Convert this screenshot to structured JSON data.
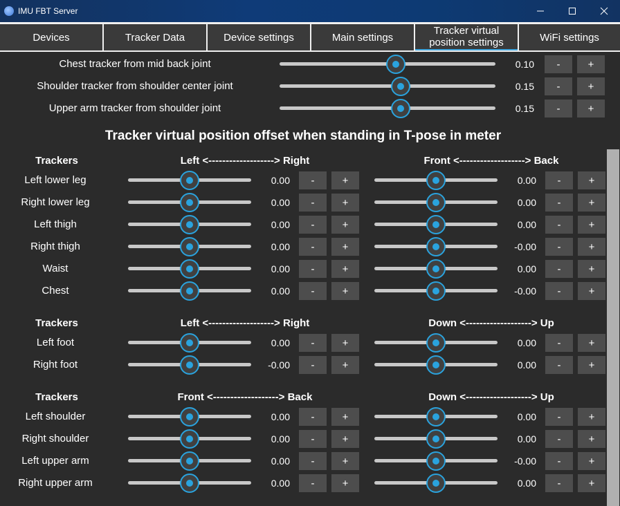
{
  "window": {
    "title": "IMU FBT Server"
  },
  "tabs": [
    "Devices",
    "Tracker Data",
    "Device settings",
    "Main settings",
    "Tracker virtual\nposition settings",
    "WiFi settings"
  ],
  "buttons": {
    "minus": "-",
    "plus": "+"
  },
  "top_rows": [
    {
      "label": "Chest tracker from mid back joint",
      "value": "0.10",
      "position": 0.54
    },
    {
      "label": "Shoulder tracker from shoulder center joint",
      "value": "0.15",
      "position": 0.56
    },
    {
      "label": "Upper arm tracker from shoulder joint",
      "value": "0.15",
      "position": 0.56
    }
  ],
  "section_title": "Tracker virtual position offset when standing in T-pose in meter",
  "groups": [
    {
      "col_header": "Trackers",
      "axis1": "Left <-------------------> Right",
      "axis2": "Front <-------------------> Back",
      "rows": [
        {
          "label": "Left lower leg",
          "v1": "0.00",
          "v2": "0.00"
        },
        {
          "label": "Right lower leg",
          "v1": "0.00",
          "v2": "0.00"
        },
        {
          "label": "Left thigh",
          "v1": "0.00",
          "v2": "0.00"
        },
        {
          "label": "Right thigh",
          "v1": "0.00",
          "v2": "-0.00"
        },
        {
          "label": "Waist",
          "v1": "0.00",
          "v2": "0.00"
        },
        {
          "label": "Chest",
          "v1": "0.00",
          "v2": "-0.00"
        }
      ]
    },
    {
      "col_header": "Trackers",
      "axis1": "Left <-------------------> Right",
      "axis2": "Down <-------------------> Up",
      "rows": [
        {
          "label": "Left foot",
          "v1": "0.00",
          "v2": "0.00"
        },
        {
          "label": "Right foot",
          "v1": "-0.00",
          "v2": "0.00"
        }
      ]
    },
    {
      "col_header": "Trackers",
      "axis1": "Front <-------------------> Back",
      "axis2": "Down <-------------------> Up",
      "rows": [
        {
          "label": "Left shoulder",
          "v1": "0.00",
          "v2": "0.00"
        },
        {
          "label": "Right shoulder",
          "v1": "0.00",
          "v2": "0.00"
        },
        {
          "label": "Left upper arm",
          "v1": "0.00",
          "v2": "-0.00"
        },
        {
          "label": "Right upper arm",
          "v1": "0.00",
          "v2": "0.00"
        }
      ]
    }
  ],
  "offset_slider_position": 0.5,
  "colors": {
    "accent": "#2aa3de",
    "background": "#2b2b2b",
    "button": "#4d4d4d",
    "tab": "#3a3a3a"
  }
}
